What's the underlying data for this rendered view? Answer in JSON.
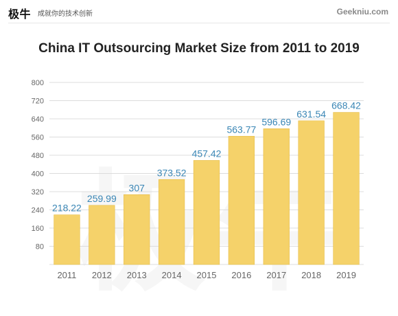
{
  "header": {
    "logo": "极牛",
    "slogan": "成就你的技术创新",
    "site": "Geekniu.com"
  },
  "watermark": "极牛",
  "colors": {
    "bar": "#f5d26a",
    "bar_edge": "#e6bc45",
    "value_label": "#3a86b5",
    "tick_label": "#666666",
    "grid": "#dcdcdc"
  },
  "chart_data": {
    "type": "bar",
    "title": "China IT Outsourcing Market Size from 2011 to 2019",
    "categories": [
      "2011",
      "2012",
      "2013",
      "2014",
      "2015",
      "2016",
      "2017",
      "2018",
      "2019"
    ],
    "values": [
      218.22,
      259.99,
      307,
      373.52,
      457.42,
      563.77,
      596.69,
      631.54,
      668.42
    ],
    "value_labels": [
      "218.22",
      "259.99",
      "307",
      "373.52",
      "457.42",
      "563.77",
      "596.69",
      "631.54",
      "668.42"
    ],
    "ylim": [
      0,
      800
    ],
    "yticks": [
      "80",
      "160",
      "240",
      "320",
      "400",
      "480",
      "560",
      "640",
      "720",
      "800"
    ],
    "grid": true,
    "xlabel": "",
    "ylabel": ""
  }
}
